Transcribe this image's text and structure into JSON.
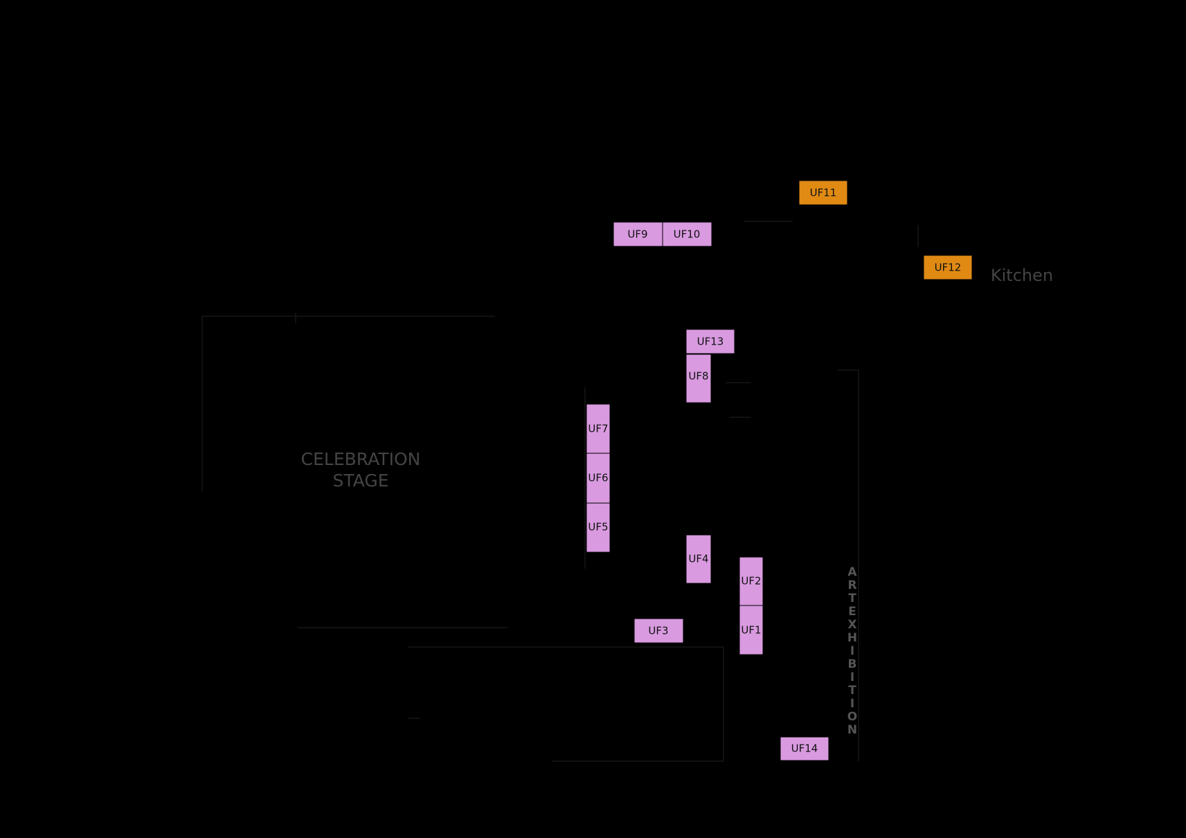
{
  "areas": {
    "stage": [
      "CELEBRATION",
      "STAGE"
    ],
    "kitchen": "Kitchen",
    "art": "ART EXHIBITION"
  },
  "booths": [
    "UF11",
    "UF9",
    "UF10",
    "UF12",
    "UF13",
    "UF8",
    "UF7",
    "UF6",
    "UF5",
    "UF4",
    "UF2",
    "UF1",
    "UF3",
    "UF14"
  ]
}
